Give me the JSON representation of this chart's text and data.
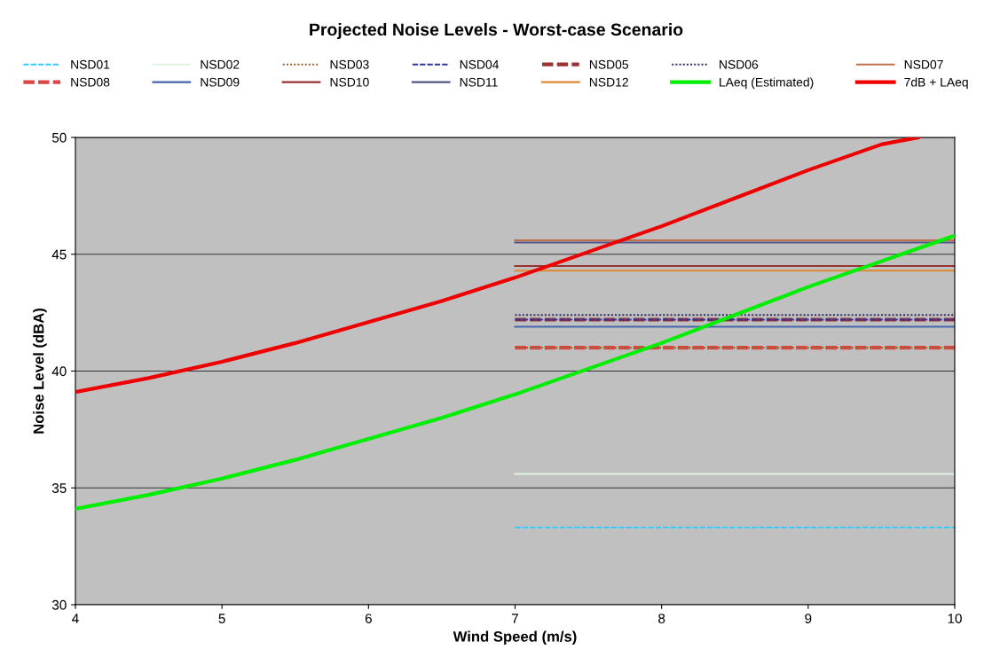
{
  "chart_data": {
    "type": "line",
    "title": "Projected Noise Levels - Worst-case Scenario",
    "xlabel": "Wind Speed (m/s)",
    "ylabel": "Noise Level (dBA)",
    "xlim": [
      4,
      10
    ],
    "xticks": [
      4,
      5,
      6,
      7,
      8,
      9,
      10
    ],
    "ylim": [
      30,
      50
    ],
    "yticks": [
      30,
      35,
      40,
      45,
      50
    ],
    "grid": "y",
    "legend": "top",
    "marker": "none",
    "series": [
      {
        "name": "NSD01",
        "color": "#33ccff",
        "line_style": "dashed",
        "x": [
          7,
          10
        ],
        "values": [
          33.3,
          33.3
        ]
      },
      {
        "name": "NSD02",
        "color": "#e0f4e0",
        "line_style": "solid",
        "x": [
          7,
          10
        ],
        "values": [
          35.6,
          35.6
        ]
      },
      {
        "name": "NSD03",
        "color": "#996633",
        "line_style": "dotted",
        "x": [
          7,
          10
        ],
        "values": [
          41.0,
          41.0
        ]
      },
      {
        "name": "NSD04",
        "color": "#333399",
        "line_style": "dashed",
        "x": [
          7,
          10
        ],
        "values": [
          42.2,
          42.2
        ]
      },
      {
        "name": "NSD05",
        "color": "#993333",
        "line_style": "dashed",
        "x": [
          7,
          10
        ],
        "values": [
          42.2,
          42.2
        ]
      },
      {
        "name": "NSD06",
        "color": "#333366",
        "line_style": "dotted",
        "x": [
          7,
          10
        ],
        "values": [
          42.4,
          42.4
        ]
      },
      {
        "name": "NSD07",
        "color": "#c0704a",
        "line_style": "solid",
        "x": [
          7,
          10
        ],
        "values": [
          45.6,
          45.6
        ]
      },
      {
        "name": "NSD08",
        "color": "#dd4444",
        "line_style": "dashed",
        "x": [
          7,
          10
        ],
        "values": [
          41.0,
          41.0
        ]
      },
      {
        "name": "NSD09",
        "color": "#4466aa",
        "line_style": "solid",
        "x": [
          7,
          10
        ],
        "values": [
          41.9,
          41.9
        ]
      },
      {
        "name": "NSD10",
        "color": "#993333",
        "line_style": "solid",
        "x": [
          7,
          10
        ],
        "values": [
          44.5,
          44.5
        ]
      },
      {
        "name": "NSD11",
        "color": "#555588",
        "line_style": "solid",
        "x": [
          7,
          10
        ],
        "values": [
          45.5,
          45.5
        ]
      },
      {
        "name": "NSD12",
        "color": "#dd8833",
        "line_style": "solid",
        "x": [
          7,
          10
        ],
        "values": [
          44.3,
          44.3
        ]
      },
      {
        "name": "LAeq (Estimated)",
        "color": "#00ee00",
        "line_style": "solid",
        "x": [
          4,
          4.5,
          5,
          5.5,
          6,
          6.5,
          7,
          7.5,
          8,
          8.5,
          9,
          9.5,
          10
        ],
        "values": [
          34.1,
          34.7,
          35.4,
          36.2,
          37.1,
          38.0,
          39.0,
          40.1,
          41.2,
          42.4,
          43.6,
          44.7,
          45.8
        ]
      },
      {
        "name": "7dB + LAeq",
        "color": "#ee0000",
        "line_style": "solid",
        "x": [
          4,
          4.5,
          5,
          5.5,
          6,
          6.5,
          7,
          7.5,
          8,
          8.5,
          9,
          9.5,
          9.75
        ],
        "values": [
          39.1,
          39.7,
          40.4,
          41.2,
          42.1,
          43.0,
          44.0,
          45.1,
          46.2,
          47.4,
          48.6,
          49.7,
          50.0
        ]
      }
    ]
  }
}
